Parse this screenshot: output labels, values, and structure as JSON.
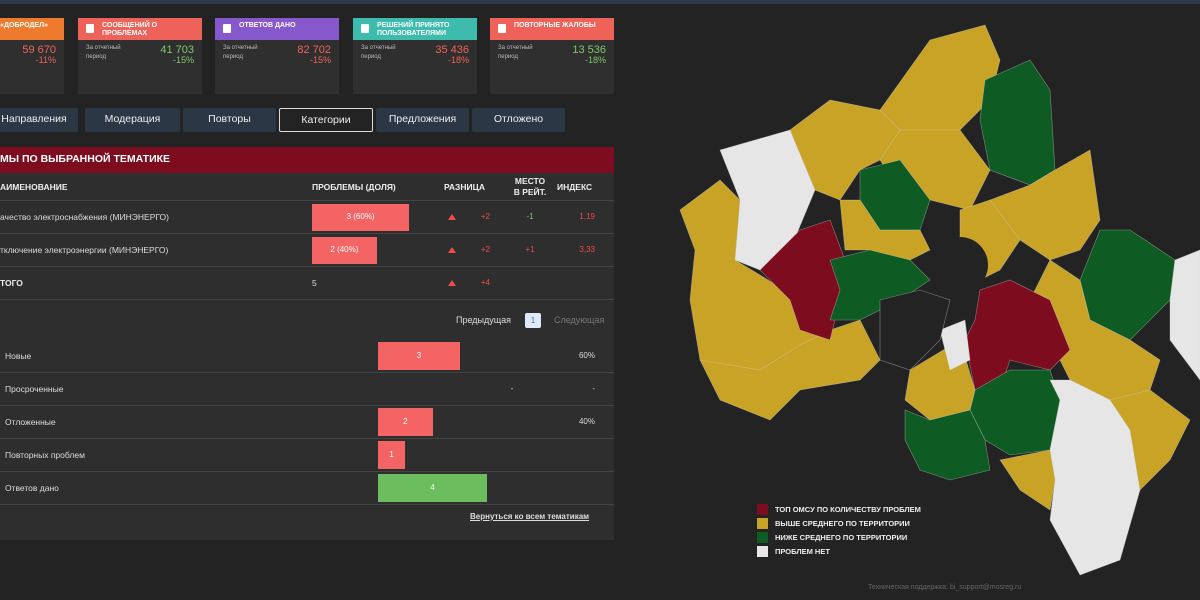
{
  "cards": [
    {
      "title": "АЦИЙ В И «ДОБРОДЕЛ»",
      "subtitle": null,
      "value": "59 670",
      "delta": "-11%",
      "header_color": "#ee7b2d",
      "value_color": "#f0645a"
    },
    {
      "title": "СООБЩЕНИЙ О ПРОБЛЕМАХ",
      "subtitle": "За отчетный период",
      "value": "41 703",
      "delta": "-15%",
      "header_color": "#ef6259",
      "value_color": "#7dc96b"
    },
    {
      "title": "ОТВЕТОВ ДАНО",
      "subtitle": "За отчетный период",
      "value": "82 702",
      "delta": "-15%",
      "header_color": "#8757cc",
      "value_color": "#f0645a"
    },
    {
      "title": "РЕШЕНИЙ ПРИНЯТО ПОЛЬЗОВАТЕЛЯМИ",
      "subtitle": "За отчетный период",
      "value": "35 436",
      "delta": "-18%",
      "header_color": "#3dbcae",
      "value_color": "#f0645a"
    },
    {
      "title": "ПОВТОРНЫЕ ЖАЛОБЫ",
      "subtitle": "За отчетный период",
      "value": "13 536",
      "delta": "-18%",
      "header_color": "#ef6259",
      "value_color": "#7dc96b"
    }
  ],
  "tabs": [
    {
      "label": "Направления",
      "active": false
    },
    {
      "label": "Модерация",
      "active": false
    },
    {
      "label": "Повторы",
      "active": false
    },
    {
      "label": "Категории",
      "active": true
    },
    {
      "label": "Предложения",
      "active": false
    },
    {
      "label": "Отложено",
      "active": false
    }
  ],
  "table": {
    "title": "МЫ ПО ВЫБРАННОЙ ТЕМАТИКЕ",
    "headers": [
      "АИМЕНОВАНИЕ",
      "ПРОБЛЕМЫ (ДОЛЯ)",
      "РАЗНИЦА",
      "МЕСТО В РЕЙТ.",
      "ИНДЕКС"
    ],
    "rows": [
      {
        "name": "ачество электроснабжения (МИНЭНЕРГО)",
        "share": {
          "value": 60,
          "label": "3 (60%)"
        },
        "diff": "+2",
        "place": "-1",
        "index": "1,19"
      },
      {
        "name": "тключение электроэнергии (МИНЭНЕРГО)",
        "share": {
          "value": 40,
          "label": "2 (40%)"
        },
        "diff": "+2",
        "place": "+1",
        "index": "3,33"
      }
    ],
    "total": {
      "name": "ТОГО",
      "count": "5",
      "diff": "+4"
    }
  },
  "pagination": {
    "prev": "Предыдущая",
    "page": "1",
    "next": "Следующая"
  },
  "status": [
    {
      "label": "Новые",
      "count": 3,
      "extra": null,
      "share": "60%"
    },
    {
      "label": "Просроченные",
      "count": null,
      "extra": "-",
      "share": "-"
    },
    {
      "label": "Отложенные",
      "count": 2,
      "extra": null,
      "share": "40%"
    },
    {
      "label": "Повторных проблем",
      "count": 1,
      "extra": null,
      "share": null
    },
    {
      "label": "Ответов дано",
      "count": 4,
      "extra": null,
      "share": null
    }
  ],
  "back_link": "Вернуться ко всем тематикам",
  "legend": [
    {
      "label": "ТОП ОМСУ ПО КОЛИЧЕСТВУ ПРОБЛЕМ",
      "color": "#7c0c1e"
    },
    {
      "label": "ВЫШЕ СРЕДНЕГО ПО ТЕРРИТОРИИ",
      "color": "#c8a325"
    },
    {
      "label": "НИЖЕ СРЕДНЕГО ПО ТЕРРИТОРИИ",
      "color": "#0f5b24"
    },
    {
      "label": "ПРОБЛЕМ НЕТ",
      "color": "#e6e6e6"
    }
  ],
  "footer": "Техническая поддержка: bi_support@mosreg.ru"
}
